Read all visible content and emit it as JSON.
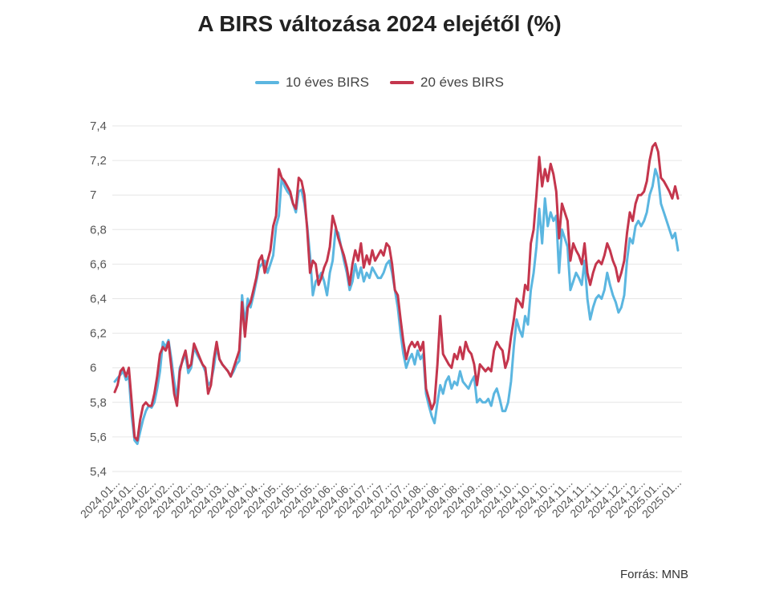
{
  "chart_data": {
    "type": "line",
    "title": "A BIRS változása 2024 elejétől (%)",
    "xlabel": "",
    "ylabel": "",
    "ylim": [
      5.4,
      7.4
    ],
    "yticks": [
      "5,4",
      "5,6",
      "5,8",
      "6",
      "6,2",
      "6,4",
      "6,6",
      "6,8",
      "7",
      "7,2",
      "7,4"
    ],
    "grid": true,
    "legend_position": "top-center",
    "x_tick_labels": [
      "2024.01...",
      "2024.01...",
      "2024.02...",
      "2024.02...",
      "2024.02...",
      "2024.03...",
      "2024.03...",
      "2024.04...",
      "2024.04...",
      "2024.05...",
      "2024.05...",
      "2024.05...",
      "2024.06...",
      "2024.06...",
      "2024.07...",
      "2024.07...",
      "2024.07...",
      "2024.08...",
      "2024.08...",
      "2024.08...",
      "2024.09...",
      "2024.09...",
      "2024.10...",
      "2024.10...",
      "2024.10...",
      "2024.11...",
      "2024.11...",
      "2024.11...",
      "2024.12...",
      "2024.12...",
      "2025.01...",
      "2025.01..."
    ],
    "series": [
      {
        "name": "10 éves BIRS",
        "color": "#5bb6e0",
        "values": [
          5.92,
          5.94,
          5.96,
          5.98,
          5.93,
          5.95,
          5.72,
          5.58,
          5.56,
          5.63,
          5.7,
          5.75,
          5.78,
          5.77,
          5.8,
          5.88,
          5.98,
          6.15,
          6.12,
          6.16,
          6.05,
          5.92,
          5.82,
          6.0,
          6.04,
          6.08,
          5.97,
          6.0,
          6.12,
          6.08,
          6.05,
          6.02,
          5.98,
          5.9,
          5.92,
          6.0,
          6.12,
          6.05,
          6.02,
          6.0,
          5.98,
          5.95,
          5.98,
          6.02,
          6.04,
          6.42,
          6.25,
          6.4,
          6.35,
          6.42,
          6.5,
          6.58,
          6.6,
          6.62,
          6.55,
          6.6,
          6.65,
          6.82,
          6.88,
          7.1,
          7.05,
          7.02,
          7.0,
          6.95,
          6.9,
          7.02,
          7.03,
          6.95,
          6.82,
          6.65,
          6.42,
          6.5,
          6.52,
          6.55,
          6.5,
          6.42,
          6.55,
          6.62,
          6.8,
          6.78,
          6.7,
          6.62,
          6.55,
          6.45,
          6.5,
          6.6,
          6.52,
          6.58,
          6.5,
          6.55,
          6.52,
          6.58,
          6.55,
          6.52,
          6.52,
          6.55,
          6.6,
          6.62,
          6.55,
          6.45,
          6.35,
          6.2,
          6.08,
          6.0,
          6.05,
          6.08,
          6.02,
          6.1,
          6.05,
          6.08,
          5.85,
          5.78,
          5.72,
          5.68,
          5.8,
          5.9,
          5.85,
          5.92,
          5.95,
          5.88,
          5.92,
          5.9,
          5.98,
          5.92,
          5.9,
          5.88,
          5.92,
          5.95,
          5.8,
          5.82,
          5.8,
          5.8,
          5.82,
          5.78,
          5.85,
          5.88,
          5.82,
          5.75,
          5.75,
          5.8,
          5.92,
          6.12,
          6.28,
          6.22,
          6.18,
          6.3,
          6.25,
          6.45,
          6.55,
          6.7,
          6.92,
          6.72,
          6.98,
          6.82,
          6.9,
          6.85,
          6.88,
          6.55,
          6.8,
          6.75,
          6.7,
          6.45,
          6.5,
          6.55,
          6.52,
          6.48,
          6.62,
          6.4,
          6.28,
          6.35,
          6.4,
          6.42,
          6.4,
          6.45,
          6.55,
          6.48,
          6.42,
          6.38,
          6.32,
          6.35,
          6.42,
          6.62,
          6.75,
          6.72,
          6.82,
          6.85,
          6.82,
          6.85,
          6.9,
          7.0,
          7.05,
          7.15,
          7.1,
          6.95,
          6.9,
          6.85,
          6.8,
          6.75,
          6.78,
          6.68
        ]
      },
      {
        "name": "20 éves BIRS",
        "color": "#c4364d",
        "values": [
          5.86,
          5.9,
          5.98,
          6.0,
          5.95,
          6.0,
          5.8,
          5.6,
          5.58,
          5.7,
          5.78,
          5.8,
          5.78,
          5.78,
          5.85,
          5.95,
          6.08,
          6.12,
          6.1,
          6.15,
          6.0,
          5.85,
          5.78,
          5.98,
          6.05,
          6.1,
          6.0,
          6.02,
          6.14,
          6.1,
          6.06,
          6.02,
          6.0,
          5.85,
          5.9,
          6.05,
          6.15,
          6.05,
          6.02,
          6.0,
          5.98,
          5.95,
          6.0,
          6.05,
          6.1,
          6.38,
          6.18,
          6.35,
          6.38,
          6.45,
          6.52,
          6.62,
          6.65,
          6.55,
          6.62,
          6.68,
          6.82,
          6.88,
          7.15,
          7.1,
          7.08,
          7.05,
          7.02,
          6.95,
          6.92,
          7.1,
          7.08,
          7.0,
          6.8,
          6.55,
          6.62,
          6.6,
          6.48,
          6.52,
          6.58,
          6.62,
          6.7,
          6.88,
          6.82,
          6.75,
          6.7,
          6.65,
          6.58,
          6.48,
          6.6,
          6.68,
          6.62,
          6.72,
          6.58,
          6.65,
          6.6,
          6.68,
          6.62,
          6.65,
          6.68,
          6.65,
          6.72,
          6.7,
          6.6,
          6.45,
          6.42,
          6.28,
          6.15,
          6.05,
          6.12,
          6.15,
          6.12,
          6.15,
          6.1,
          6.15,
          5.88,
          5.82,
          5.76,
          5.8,
          6.02,
          6.3,
          6.08,
          6.05,
          6.02,
          6.0,
          6.08,
          6.05,
          6.12,
          6.05,
          6.15,
          6.1,
          6.08,
          6.02,
          5.9,
          6.02,
          6.0,
          5.98,
          6.0,
          5.98,
          6.1,
          6.15,
          6.12,
          6.1,
          6.0,
          6.05,
          6.18,
          6.28,
          6.4,
          6.38,
          6.35,
          6.48,
          6.45,
          6.72,
          6.8,
          7.0,
          7.22,
          7.05,
          7.15,
          7.08,
          7.18,
          7.12,
          7.02,
          6.75,
          6.95,
          6.9,
          6.85,
          6.62,
          6.72,
          6.68,
          6.65,
          6.6,
          6.72,
          6.55,
          6.48,
          6.55,
          6.6,
          6.62,
          6.6,
          6.65,
          6.72,
          6.68,
          6.62,
          6.58,
          6.5,
          6.55,
          6.62,
          6.78,
          6.9,
          6.85,
          6.95,
          7.0,
          7.0,
          7.02,
          7.08,
          7.2,
          7.28,
          7.3,
          7.25,
          7.1,
          7.08,
          7.05,
          7.02,
          6.98,
          7.05,
          6.98
        ]
      }
    ]
  },
  "footer": {
    "source": "Forrás: MNB"
  }
}
